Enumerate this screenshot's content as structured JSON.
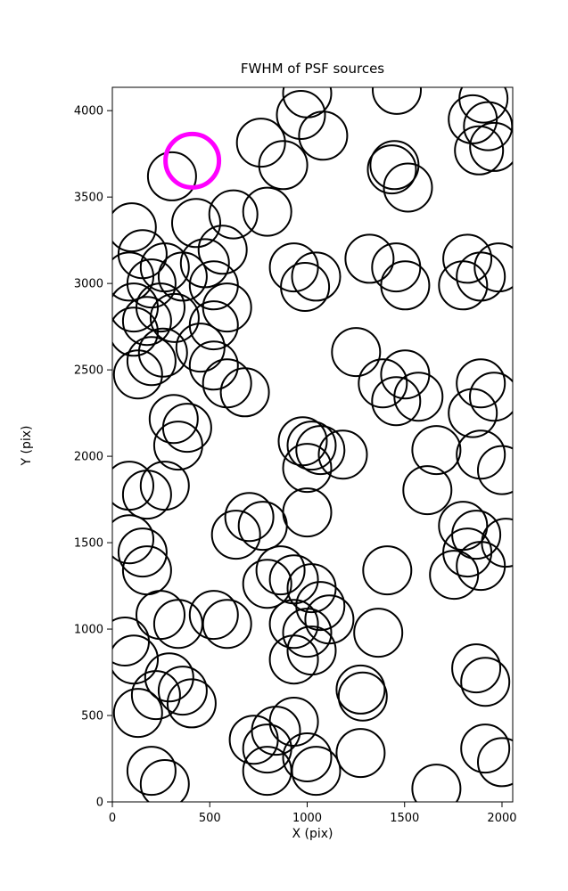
{
  "chart_data": {
    "type": "scatter",
    "title": "FWHM of PSF sources",
    "xlabel": "X (pix)",
    "ylabel": "Y (pix)",
    "xlim": [
      0,
      2055
    ],
    "ylim": [
      0,
      4135
    ],
    "xticks": [
      0,
      500,
      1000,
      1500,
      2000
    ],
    "yticks": [
      0,
      500,
      1000,
      1500,
      2000,
      2500,
      3000,
      3500,
      4000
    ],
    "legend": "none",
    "grid": false,
    "marker": "open-circle",
    "marker_radius_px": 27,
    "marker_stroke_px": 2,
    "colors": {
      "default": "#000000",
      "highlight": "#FF00FF",
      "axis": "#000000",
      "background": "#FFFFFF"
    },
    "highlight_point": {
      "x": 410,
      "y": 3710,
      "radius_px": 30,
      "stroke_px": 5
    },
    "points": [
      [
        306,
        3620
      ],
      [
        763,
        3815
      ],
      [
        877,
        3685
      ],
      [
        968,
        3975
      ],
      [
        1082,
        3855
      ],
      [
        1000,
        4100
      ],
      [
        1460,
        4120
      ],
      [
        1435,
        3660
      ],
      [
        1517,
        3555
      ],
      [
        1448,
        3685
      ],
      [
        1905,
        4070
      ],
      [
        1928,
        3910
      ],
      [
        1882,
        3770
      ],
      [
        1960,
        3790
      ],
      [
        1850,
        3950
      ],
      [
        621,
        3400
      ],
      [
        795,
        3415
      ],
      [
        430,
        3350
      ],
      [
        100,
        3325
      ],
      [
        155,
        3170
      ],
      [
        87,
        3040
      ],
      [
        201,
        3000
      ],
      [
        269,
        3093
      ],
      [
        361,
        3040
      ],
      [
        475,
        3117
      ],
      [
        566,
        3195
      ],
      [
        521,
        2989
      ],
      [
        932,
        3093
      ],
      [
        1046,
        3040
      ],
      [
        989,
        2980
      ],
      [
        1320,
        3143
      ],
      [
        1457,
        3093
      ],
      [
        1503,
        2989
      ],
      [
        1822,
        3143
      ],
      [
        1891,
        3040
      ],
      [
        1800,
        2989
      ],
      [
        1983,
        3093
      ],
      [
        110,
        2861
      ],
      [
        178,
        2783
      ],
      [
        110,
        2721
      ],
      [
        247,
        2861
      ],
      [
        320,
        2800
      ],
      [
        589,
        2861
      ],
      [
        521,
        2758
      ],
      [
        452,
        2629
      ],
      [
        521,
        2525
      ],
      [
        589,
        2422
      ],
      [
        680,
        2370
      ],
      [
        201,
        2551
      ],
      [
        132,
        2474
      ],
      [
        260,
        2600
      ],
      [
        1251,
        2603
      ],
      [
        1388,
        2422
      ],
      [
        1503,
        2474
      ],
      [
        1457,
        2319
      ],
      [
        1571,
        2345
      ],
      [
        1891,
        2422
      ],
      [
        1959,
        2345
      ],
      [
        1850,
        2250
      ],
      [
        315,
        2216
      ],
      [
        384,
        2165
      ],
      [
        338,
        2062
      ],
      [
        977,
        2087
      ],
      [
        1023,
        2062
      ],
      [
        1068,
        2036
      ],
      [
        1000,
        1933
      ],
      [
        1183,
        2010
      ],
      [
        1663,
        2036
      ],
      [
        1891,
        2010
      ],
      [
        2000,
        1920
      ],
      [
        1617,
        1804
      ],
      [
        87,
        1830
      ],
      [
        178,
        1778
      ],
      [
        269,
        1830
      ],
      [
        703,
        1649
      ],
      [
        772,
        1598
      ],
      [
        635,
        1546
      ],
      [
        1000,
        1675
      ],
      [
        87,
        1520
      ],
      [
        155,
        1443
      ],
      [
        178,
        1340
      ],
      [
        863,
        1340
      ],
      [
        932,
        1288
      ],
      [
        795,
        1262
      ],
      [
        1023,
        1237
      ],
      [
        1411,
        1340
      ],
      [
        1800,
        1598
      ],
      [
        1868,
        1546
      ],
      [
        1822,
        1443
      ],
      [
        1891,
        1366
      ],
      [
        1754,
        1314
      ],
      [
        2020,
        1500
      ],
      [
        247,
        1082
      ],
      [
        338,
        1030
      ],
      [
        521,
        1082
      ],
      [
        589,
        1030
      ],
      [
        932,
        1030
      ],
      [
        1000,
        979
      ],
      [
        1068,
        1134
      ],
      [
        1114,
        1056
      ],
      [
        1023,
        876
      ],
      [
        932,
        824
      ],
      [
        1365,
        979
      ],
      [
        64,
        928
      ],
      [
        110,
        824
      ],
      [
        1868,
        773
      ],
      [
        1914,
        695
      ],
      [
        292,
        721
      ],
      [
        361,
        644
      ],
      [
        224,
        618
      ],
      [
        1274,
        650
      ],
      [
        1285,
        610
      ],
      [
        132,
        515
      ],
      [
        407,
        570
      ],
      [
        726,
        360
      ],
      [
        795,
        309
      ],
      [
        840,
        412
      ],
      [
        932,
        464
      ],
      [
        1000,
        258
      ],
      [
        1046,
        180
      ],
      [
        795,
        180
      ],
      [
        1274,
        283
      ],
      [
        201,
        180
      ],
      [
        269,
        103
      ],
      [
        1663,
        77
      ],
      [
        1914,
        309
      ],
      [
        2000,
        230
      ]
    ]
  }
}
